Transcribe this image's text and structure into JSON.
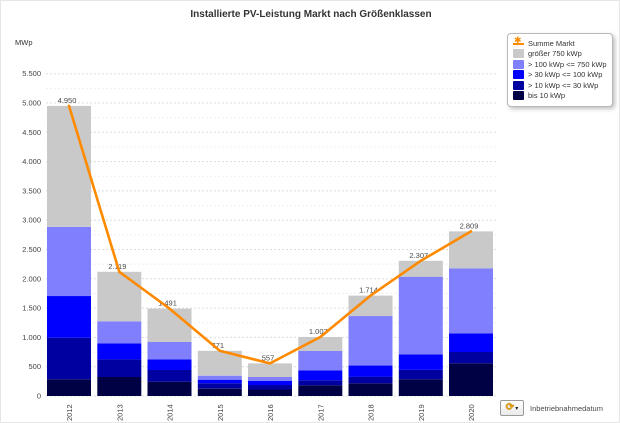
{
  "title": "Installierte PV-Leistung Markt nach Größenklassen",
  "y_axis_unit": "MWp",
  "legend": {
    "items": [
      {
        "label": "Summe Markt",
        "marker": "line-star",
        "color": "#FF8A00"
      },
      {
        "label": "größer 750 kWp",
        "marker": "square",
        "color": "#C9C9C9"
      },
      {
        "label": "> 100 kWp <= 750 kWp",
        "marker": "square",
        "color": "#8080FF"
      },
      {
        "label": "> 30 kWp <= 100 kWp",
        "marker": "square",
        "color": "#0000FE"
      },
      {
        "label": "> 10 kWp <= 30 kWp",
        "marker": "square",
        "color": "#0000A0"
      },
      {
        "label": "bis 10 kWp",
        "marker": "square",
        "color": "#000045"
      }
    ]
  },
  "footer": {
    "label": "Inbetriebnahmedatum",
    "icon": "refresh-dropdown"
  },
  "chart_data": {
    "type": "bar",
    "stacked": true,
    "title": "Installierte PV-Leistung Markt nach Größenklassen",
    "ylabel": "MWp",
    "xlabel": "Inbetriebnahmedatum",
    "categories": [
      "2012",
      "2013",
      "2014",
      "2015",
      "2016",
      "2017",
      "2018",
      "2019",
      "2020"
    ],
    "series": [
      {
        "name": "bis 10 kWp",
        "color": "#000045",
        "values": [
          285,
          325,
          244,
          125,
          111,
          183,
          216,
          285,
          558
        ]
      },
      {
        "name": "> 10 kWp <= 30 kWp",
        "color": "#0000A0",
        "values": [
          710,
          300,
          200,
          91,
          77,
          85,
          113,
          159,
          193
        ]
      },
      {
        "name": "> 30 kWp <= 100 kWp",
        "color": "#0000FE",
        "values": [
          711,
          275,
          182,
          62,
          68,
          170,
          194,
          267,
          319
        ]
      },
      {
        "name": "> 100 kWp <= 750 kWp",
        "color": "#8080FF",
        "values": [
          1182,
          375,
          295,
          69,
          69,
          330,
          842,
          1324,
          1109
        ]
      },
      {
        "name": "größer 750 kWp",
        "color": "#C9C9C9",
        "values": [
          2062,
          844,
          570,
          424,
          232,
          239,
          349,
          272,
          630
        ]
      }
    ],
    "line_series": {
      "name": "Summe Markt",
      "color": "#FF8A00",
      "values": [
        4950,
        2119,
        1491,
        771,
        557,
        1007,
        1714,
        2307,
        2809
      ]
    },
    "total_labels": [
      "4.950",
      "2.119",
      "1.491",
      "771",
      "557",
      "1.007",
      "1.714",
      "2.307",
      "2.809"
    ],
    "ylim": [
      0,
      5500
    ],
    "ytick_step": 500,
    "yminor_step": 250,
    "grid": "horizontal-dashed",
    "legend_position": "top-right"
  }
}
